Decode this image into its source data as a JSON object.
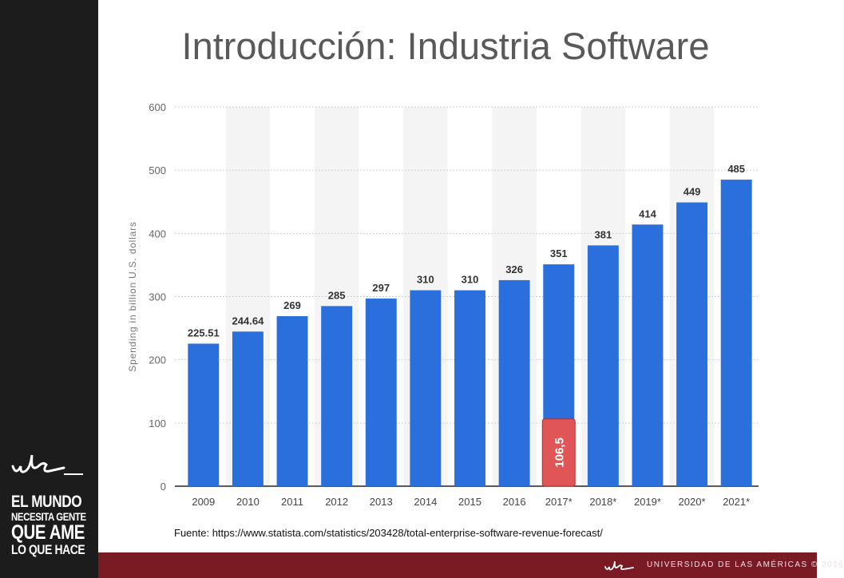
{
  "slide": {
    "title": "Introducción: Industria Software",
    "source": "Fuente: https://www.statista.com/statistics/203428/total-enterprise-software-revenue-forecast/"
  },
  "sidebar": {
    "logo": "udla",
    "slogan": [
      "EL MUNDO",
      "NECESITA GENTE",
      "QUE AME",
      "LO QUE HACE"
    ]
  },
  "footer": {
    "logo": "udla",
    "text": "UNIVERSIDAD DE LAS AMÉRICAS © 2016",
    "color": "#7a1a22"
  },
  "chart_data": {
    "type": "bar",
    "categories": [
      "2009",
      "2010",
      "2011",
      "2012",
      "2013",
      "2014",
      "2015",
      "2016",
      "2017*",
      "2018*",
      "2019*",
      "2020*",
      "2021*"
    ],
    "values": [
      225.51,
      244.64,
      269,
      285,
      297,
      310,
      310,
      326,
      351,
      381,
      414,
      449,
      485
    ],
    "value_labels": [
      "225.51",
      "244.64",
      "269",
      "285",
      "297",
      "310",
      "310",
      "326",
      "351",
      "381",
      "414",
      "449",
      "485"
    ],
    "ylabel": "Spending in billion U.S. dollars",
    "ylim": [
      0,
      600
    ],
    "yticks": [
      0,
      100,
      200,
      300,
      400,
      500,
      600
    ],
    "bar_color": "#2a6fdb",
    "grid": true,
    "annotation": {
      "category": "2017*",
      "value": 106.5,
      "label": "106,5",
      "color": "#e05555"
    }
  }
}
